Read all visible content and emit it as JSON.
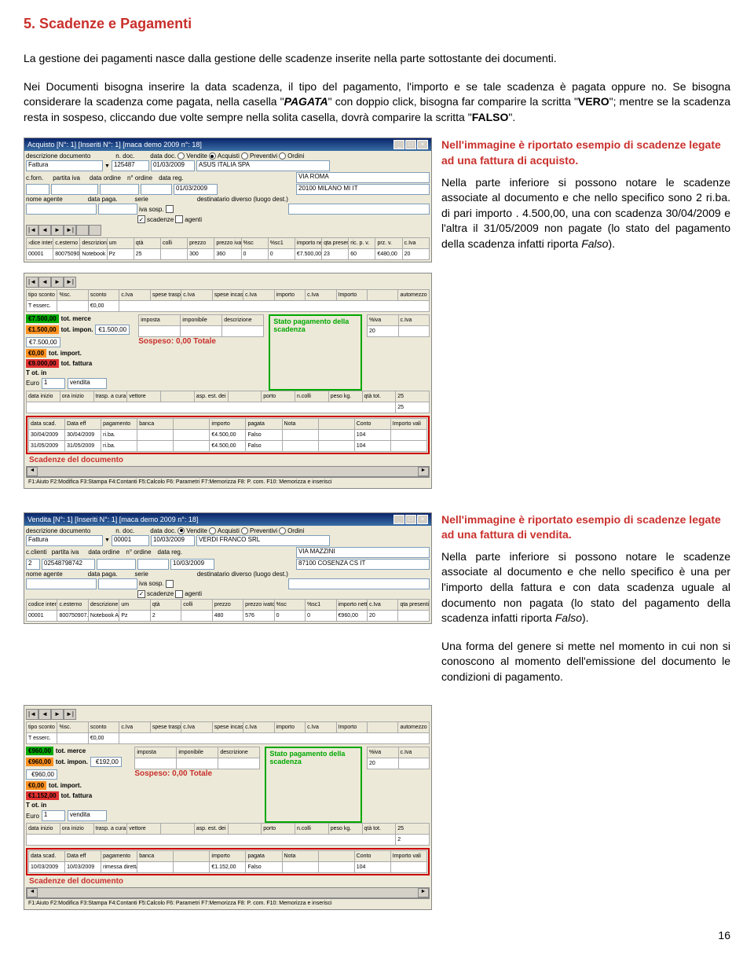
{
  "page": {
    "heading": "5. Scadenze e Pagamenti",
    "page_number": "16"
  },
  "intro": {
    "p1": "La gestione dei pagamenti nasce dalla gestione delle scadenze inserite nella parte sottostante dei documenti.",
    "p2a": "Nei Documenti bisogna inserire la data scadenza, il tipo del pagamento, l'importo e se tale scadenza è pagata oppure no. Se bisogna considerare la scadenza come pagata, nella casella \"",
    "p2b": "PAGATA",
    "p2c": "\" con doppio click, bisogna far comparire la scritta \"",
    "p2d": "VERO",
    "p2e": "\"; mentre se la scadenza resta in sospeso, cliccando due volte sempre nella solita casella, dovrà comparire la scritta \"",
    "p2f": "FALSO",
    "p2g": "\"."
  },
  "section1": {
    "caption": "Nell'immagine è riportato esempio di scadenze legate ad una fattura di acquisto.",
    "body_a": "Nella parte inferiore si possono notare le scadenze associate al documento e che nello specifico sono 2 ri.ba. di pari importo . 4.500,00, una con scadenza 30/04/2009 e l'altra il 31/05/2009 non pagate (lo stato del pagamento della scadenza infatti riporta ",
    "body_b": "Falso",
    "body_c": ")."
  },
  "section2": {
    "caption": "Nell'immagine è riportato esempio di scadenze legate ad una fattura di vendita.",
    "body_a": "Nella parte inferiore si possono notare le scadenze associate al documento e che nello specifico è una per l'importo della fattura e con data scadenza uguale al documento non pagata (lo stato del pagamento della scadenza infatti riporta ",
    "body_b": "Falso",
    "body_c": ").",
    "p2": "Una forma del genere si mette nel momento in cui non si conoscono al momento dell'emissione del documento le condizioni di pagamento."
  },
  "win1": {
    "title": "Acquisto [N°: 1] [Inseriti N°: 1] [maca demo 2009 n°: 18]",
    "desc_doc": "Fattura",
    "n_doc": "125487",
    "data_doc": "01/03/2009",
    "radio_vendite": "Vendite",
    "radio_acquisti": "Acquisti",
    "radio_preventivi": "Preventivi",
    "radio_ordini": "Ordini",
    "supplier": "ASUS ITALIA SPA",
    "addr": "VIA ROMA",
    "city": "20100 MILANO  MI IT",
    "cforn": "c.forn.",
    "piva": "partita iva",
    "data_ord": "data ordine",
    "n_ord": "n° ordine",
    "data_reg": "data reg.",
    "data_reg_v": "01/03/2009",
    "nome_agente": "nome agente",
    "data_paga": "data paga.",
    "serie": "serie",
    "iva_sosp": "iva sosp.",
    "scadenze": "scadenze",
    "agenti": "agenti",
    "dest": "destinatario diverso (luogo dest.)",
    "cols": [
      "›dice interr",
      "c.esterno",
      "descrizione",
      "um",
      "qtà",
      "colli",
      "prezzo",
      "prezzo ivato",
      "%sc",
      "%sc1",
      "importo netto",
      "qta presenti",
      "ric. p. v.",
      "prz. v.",
      "c.Iva"
    ],
    "row": [
      "00001",
      "800750907211",
      "Notebook Asus EEPC",
      "Pz",
      "25",
      "",
      "300",
      "360",
      "0",
      "0",
      "€7.500,00",
      "23",
      "60",
      "€480,00",
      "20"
    ],
    "middle_cols": [
      "tipo sconto",
      "%sc.",
      "sconto",
      "c.Iva",
      "spese trasp.",
      "c.Iva",
      "spese incas.",
      "c.Iva",
      "importo",
      "c.Iva",
      "Importo",
      "",
      "automezzo"
    ],
    "t_esserc": "T esserc.",
    "zero": "€0,00",
    "tot_merce": "tot. merce",
    "tot_merce_v": "€7.500,00",
    "tot_impon": "tot. impon.",
    "tot_impon_v": "€1.500,00",
    "tot_impon_v2": "€7.500,00",
    "tot_import": "tot. import.",
    "tot_fattura": "tot. fattura",
    "tot_fattura_v": "€9.000,00",
    "tot_in": "T ot. in",
    "sospeso": "Sospeso: 0,00 Totale",
    "euro": "Euro",
    "vendita": "vendita",
    "imposta": "imposta",
    "imponibile": "imponibile",
    "descr": "descrizione",
    "pctiva": "%iva",
    "civa": "c.Iva",
    "venti": "20",
    "green_box": "Stato pagamento della scadenza",
    "bot_cols": [
      "data inizio",
      "ora inizio",
      "trasp. a cura",
      "vettore",
      "",
      "asp. est. dei beni",
      "",
      "porto",
      "n.colli",
      "peso kg.",
      "qtà tot.",
      "25"
    ],
    "scad_cols": [
      "data scad.",
      "Data eff",
      "pagamento",
      "banca",
      "",
      "importo",
      "pagata",
      "Nota",
      "",
      "Conto",
      "Importo vali"
    ],
    "scad_r1": [
      "30/04/2009",
      "30/04/2009",
      "ri.ba.",
      "",
      "",
      "€4.500,00",
      "Falso",
      "",
      "",
      "104",
      ""
    ],
    "scad_r2": [
      "31/05/2009",
      "31/05/2009",
      "ri.ba.",
      "",
      "",
      "€4.500,00",
      "Falso",
      "",
      "",
      "104",
      ""
    ],
    "scad_caption": "Scadenze del documento",
    "status": "F1:Aiuto F2:Modifica F3:Stampa F4:Contanti F5:Calcolo F6: Parametri F7:Memorizza F8: P. com. F10: Memorizza e inserisci"
  },
  "win2": {
    "title": "Vendita [N°: 1] [Inseriti N°: 1] [maca demo 2009 n°: 18]",
    "desc_doc": "Fattura",
    "n_doc": "00001",
    "data_doc": "10/03/2009",
    "customer": "VERDI FRANCO SRL",
    "addr": "VIA MAZZINI",
    "city": "87100 COSENZA  CS IT",
    "c_clienti": "c.clienti",
    "piva": "partita iva",
    "piva_v": "02548798742",
    "data_ord": "data ordine",
    "n_ord": "n° ordine",
    "data_reg": "data reg.",
    "data_reg_v": "10/03/2009",
    "cols": [
      "codice interno",
      "c.esterno",
      "descrizione",
      "um",
      "qtà",
      "colli",
      "prezzo",
      "prezzo ivato",
      "%sc",
      "%sc1",
      "importo netto",
      "c.Iva",
      "qta presenti"
    ],
    "row": [
      "00001",
      "800750907..",
      "Notebook Asus EEPC",
      "Pz",
      "2",
      "",
      "480",
      "576",
      "0",
      "0",
      "€960,00",
      "20",
      ""
    ],
    "tot_merce_v": "€960,00",
    "tot_impon_v": "€192,00",
    "tot_impon_v2": "€960,00",
    "tot_fattura_v": "€1.152,00",
    "scad_r1": [
      "10/03/2009",
      "10/03/2009",
      "rimessa diretta",
      "",
      "",
      "€1.152,00",
      "Falso",
      "",
      "",
      "104",
      ""
    ],
    "bot_cols_last": "2"
  }
}
